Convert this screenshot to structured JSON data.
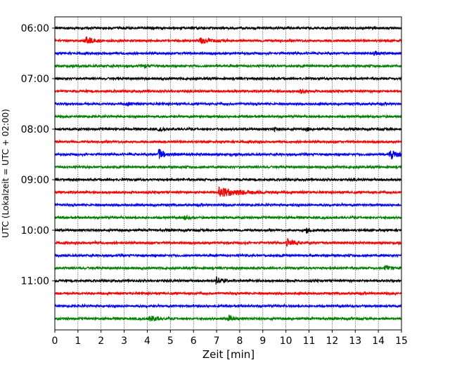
{
  "chart_data": {
    "type": "helicorder",
    "xlabel": "Zeit  [min]",
    "ylabel": "UTC (Lokalzeit = UTC + 02:00)",
    "xlim": [
      0,
      15
    ],
    "x_ticks": [
      0,
      1,
      2,
      3,
      4,
      5,
      6,
      7,
      8,
      9,
      10,
      11,
      12,
      13,
      14,
      15
    ],
    "y_tick_labels": [
      "06:00",
      "07:00",
      "08:00",
      "09:00",
      "10:00",
      "11:00"
    ],
    "trace_minutes": 15,
    "trace_count": 24,
    "start_time": "06:00",
    "trace_colors": [
      "#000000",
      "#ff0000",
      "#0000ff",
      "#008000"
    ],
    "grid": "vertical dotted at each minute",
    "events": [
      {
        "row": 1,
        "x": 1.35,
        "amplitude": 0.65,
        "decay": 0.25
      },
      {
        "row": 1,
        "x": 6.3,
        "amplitude": 0.45,
        "decay": 0.35
      },
      {
        "row": 6,
        "x": 3.1,
        "amplitude": 0.25,
        "decay": 0.2
      },
      {
        "row": 5,
        "x": 10.6,
        "amplitude": 0.3,
        "decay": 0.2
      },
      {
        "row": 8,
        "x": 4.5,
        "amplitude": 0.25,
        "decay": 0.2
      },
      {
        "row": 8,
        "x": 9.5,
        "amplitude": 0.3,
        "decay": 0.1
      },
      {
        "row": 8,
        "x": 10.9,
        "amplitude": 0.3,
        "decay": 0.1
      },
      {
        "row": 10,
        "x": 4.5,
        "amplitude": 0.9,
        "decay": 0.25
      },
      {
        "row": 10,
        "x": 14.5,
        "amplitude": 0.85,
        "decay": 0.25
      },
      {
        "row": 13,
        "x": 7.1,
        "amplitude": 0.7,
        "decay": 0.9
      },
      {
        "row": 17,
        "x": 10.05,
        "amplitude": 0.6,
        "decay": 0.3
      },
      {
        "row": 16,
        "x": 10.9,
        "amplitude": 0.45,
        "decay": 0.15
      },
      {
        "row": 15,
        "x": 5.6,
        "amplitude": 0.3,
        "decay": 0.15
      },
      {
        "row": 19,
        "x": 14.3,
        "amplitude": 0.45,
        "decay": 0.2
      },
      {
        "row": 20,
        "x": 7.0,
        "amplitude": 0.65,
        "decay": 0.2
      },
      {
        "row": 23,
        "x": 4.1,
        "amplitude": 0.45,
        "decay": 0.25
      },
      {
        "row": 23,
        "x": 7.5,
        "amplitude": 0.55,
        "decay": 0.2
      },
      {
        "row": 2,
        "x": 13.8,
        "amplitude": 0.25,
        "decay": 0.2
      },
      {
        "row": 3,
        "x": 3.9,
        "amplitude": 0.25,
        "decay": 0.2
      }
    ]
  }
}
